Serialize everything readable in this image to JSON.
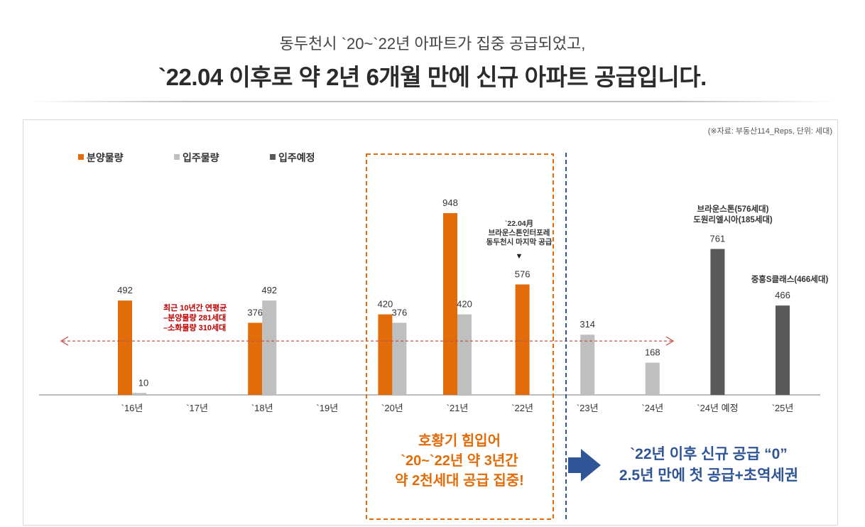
{
  "header": {
    "line1": "동두천시 `20~`22년 아파트가 집중 공급되었고,",
    "line2": "`22.04 이후로 약 2년 6개월 만에 신규 아파트 공급입니다."
  },
  "source_note": "(※자료: 부동산114_Reps, 단위: 세대)",
  "colors": {
    "supply": "#e36c0a",
    "movein": "#bfbfbf",
    "planned": "#595959",
    "avgline": "#c0504d",
    "box": "#e36c0a",
    "divider": "#2f5597",
    "arrow": "#2f5597",
    "boxtext": "#e36c0a",
    "righttext": "#2f5597"
  },
  "chart_data": {
    "type": "bar",
    "categories": [
      "`16년",
      "`17년",
      "`18년",
      "`19년",
      "`20년",
      "`21년",
      "`22년",
      "`23년",
      "`24년",
      "`24년 예정",
      "`25년"
    ],
    "series": [
      {
        "name": "분양물량",
        "values": [
          492,
          null,
          376,
          null,
          420,
          948,
          576,
          null,
          null,
          null,
          null
        ]
      },
      {
        "name": "입주물량",
        "values": [
          10,
          null,
          492,
          null,
          376,
          420,
          null,
          314,
          168,
          null,
          null
        ]
      },
      {
        "name": "입주예정",
        "values": [
          null,
          null,
          null,
          null,
          null,
          null,
          null,
          null,
          null,
          761,
          466
        ]
      }
    ],
    "ylim": [
      0,
      1000
    ],
    "legend_position": "top-left",
    "grid": false
  },
  "annotations": {
    "avg_line": [
      "최근 10년간 연평균",
      "–분양물량 281세대",
      "–소화물량 310세대"
    ],
    "note_2022": [
      "`22.04月",
      "브라운스톤인터포레",
      "동두천시 마지막 공급"
    ],
    "note_2022_marker": "▼",
    "note_2024": [
      "브라운스톤(576세대)",
      "도원리엘시아(185세대)"
    ],
    "note_2025": "중흥S클래스(466세대)",
    "box_text": [
      "호황기 힘입어",
      "`20~`22년 약 3년간",
      "약 2천세대 공급 집중!"
    ],
    "right_text": [
      "`22년 이후 신규 공급 “0”",
      "2.5년 만에 첫 공급+초역세권"
    ]
  }
}
